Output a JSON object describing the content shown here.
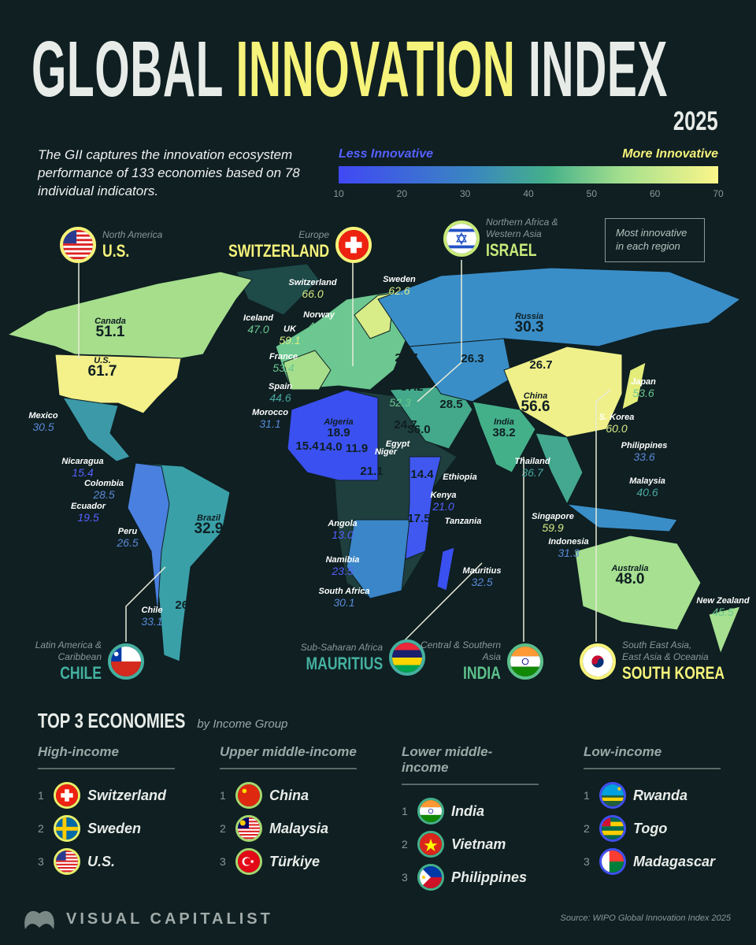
{
  "header": {
    "title_part1": "GLOBAL",
    "title_highlight": "INNOVATION",
    "title_part2": "INDEX",
    "year": "2025",
    "intro": "The GII captures the innovation ecosystem performance of 133 economies based on 78 individual indicators."
  },
  "legend": {
    "less": "Less Innovative",
    "more": "More Innovative",
    "ticks": [
      "10",
      "20",
      "30",
      "40",
      "50",
      "60",
      "70"
    ],
    "colors": [
      "#4048f5",
      "#3a86c0",
      "#44b08a",
      "#a6e08e",
      "#fbf68a"
    ]
  },
  "map": {
    "note": "Most innovative in each region",
    "labels": [
      {
        "name": "Canada",
        "value": "51.1"
      },
      {
        "name": "U.S.",
        "value": "61.7"
      },
      {
        "name": "Mexico",
        "value": "30.5"
      },
      {
        "name": "Nicaragua",
        "value": "15.4"
      },
      {
        "name": "Colombia",
        "value": "28.5"
      },
      {
        "name": "Ecuador",
        "value": "19.5"
      },
      {
        "name": "Peru",
        "value": "26.5"
      },
      {
        "name": "Brazil",
        "value": "32.9"
      },
      {
        "name": "Chile",
        "value": "33.1"
      },
      {
        "name": "",
        "value": "26.8"
      },
      {
        "name": "Switzerland",
        "value": "66.0"
      },
      {
        "name": "Sweden",
        "value": "62.6"
      },
      {
        "name": "Iceland",
        "value": "47.0"
      },
      {
        "name": "Norway",
        "value": "49.1"
      },
      {
        "name": "UK",
        "value": "59.1"
      },
      {
        "name": "France",
        "value": "53.4"
      },
      {
        "name": "Spain",
        "value": "44.6"
      },
      {
        "name": "Morocco",
        "value": "31.1"
      },
      {
        "name": "Algeria",
        "value": "18.9"
      },
      {
        "name": "",
        "value": "15.4"
      },
      {
        "name": "",
        "value": "14.0"
      },
      {
        "name": "",
        "value": "11.9"
      },
      {
        "name": "Niger",
        "value": ""
      },
      {
        "name": "",
        "value": "21.1"
      },
      {
        "name": "",
        "value": "29.7"
      },
      {
        "name": "",
        "value": "37.2"
      },
      {
        "name": "",
        "value": "52.3"
      },
      {
        "name": "",
        "value": "24.7"
      },
      {
        "name": "Egypt",
        "value": ""
      },
      {
        "name": "",
        "value": "36.0"
      },
      {
        "name": "",
        "value": "28.5"
      },
      {
        "name": "",
        "value": "26.3"
      },
      {
        "name": "",
        "value": "26.7"
      },
      {
        "name": "Russia",
        "value": "30.3"
      },
      {
        "name": "China",
        "value": "56.6"
      },
      {
        "name": "Japan",
        "value": "53.6"
      },
      {
        "name": "S. Korea",
        "value": "60.0"
      },
      {
        "name": "India",
        "value": "38.2"
      },
      {
        "name": "Philippines",
        "value": "33.6"
      },
      {
        "name": "Thailand",
        "value": "36.7"
      },
      {
        "name": "Malaysia",
        "value": "40.6"
      },
      {
        "name": "",
        "value": "14.4"
      },
      {
        "name": "Ethiopia",
        "value": ""
      },
      {
        "name": "Kenya",
        "value": "21.0"
      },
      {
        "name": "",
        "value": "17.5"
      },
      {
        "name": "Tanzania",
        "value": ""
      },
      {
        "name": "Singapore",
        "value": "59.9"
      },
      {
        "name": "Indonesia",
        "value": "31.3"
      },
      {
        "name": "Angola",
        "value": "13.0"
      },
      {
        "name": "Namibia",
        "value": "23.5"
      },
      {
        "name": "South Africa",
        "value": "30.1"
      },
      {
        "name": "Mauritius",
        "value": "32.5"
      },
      {
        "name": "Australia",
        "value": "48.0"
      },
      {
        "name": "New Zealand",
        "value": "45.5"
      }
    ],
    "region_leaders": [
      {
        "region": "North America",
        "country": "U.S.",
        "flag": "us",
        "color": "#f6f37a"
      },
      {
        "region": "Europe",
        "country": "SWITZERLAND",
        "flag": "ch",
        "color": "#f6f37a"
      },
      {
        "region": "Northern Africa & Western Asia",
        "country": "ISRAEL",
        "flag": "il",
        "color": "#c8ea7a"
      },
      {
        "region": "Latin America & Caribbean",
        "country": "CHILE",
        "flag": "cl",
        "color": "#44b0a0"
      },
      {
        "region": "Sub-Saharan Africa",
        "country": "MAURITIUS",
        "flag": "mu",
        "color": "#44b0a0"
      },
      {
        "region": "Central & Southern Asia",
        "country": "INDIA",
        "flag": "in",
        "color": "#5cc08a"
      },
      {
        "region": "South East Asia, East Asia & Oceania",
        "country": "SOUTH KOREA",
        "flag": "kr",
        "color": "#f6f37a"
      }
    ]
  },
  "top3": {
    "title": "TOP 3 ECONOMIES",
    "subtitle": "by Income Group",
    "groups": [
      {
        "label": "High-income",
        "ring": "#e8f06a",
        "items": [
          {
            "rank": "1",
            "country": "Switzerland",
            "flag": "ch"
          },
          {
            "rank": "2",
            "country": "Sweden",
            "flag": "se"
          },
          {
            "rank": "3",
            "country": "U.S.",
            "flag": "us"
          }
        ]
      },
      {
        "label": "Upper middle-income",
        "ring": "#a6d870",
        "items": [
          {
            "rank": "1",
            "country": "China",
            "flag": "cn"
          },
          {
            "rank": "2",
            "country": "Malaysia",
            "flag": "my"
          },
          {
            "rank": "3",
            "country": "Türkiye",
            "flag": "tr"
          }
        ]
      },
      {
        "label": "Lower middle-income",
        "ring": "#44b08a",
        "items": [
          {
            "rank": "1",
            "country": "India",
            "flag": "in"
          },
          {
            "rank": "2",
            "country": "Vietnam",
            "flag": "vn"
          },
          {
            "rank": "3",
            "country": "Philippines",
            "flag": "ph"
          }
        ]
      },
      {
        "label": "Low-income",
        "ring": "#4050f0",
        "items": [
          {
            "rank": "1",
            "country": "Rwanda",
            "flag": "rw"
          },
          {
            "rank": "2",
            "country": "Togo",
            "flag": "tg"
          },
          {
            "rank": "3",
            "country": "Madagascar",
            "flag": "mg"
          }
        ]
      }
    ]
  },
  "footer": {
    "brand": "VISUAL CAPITALIST",
    "source": "Source: WIPO Global Innovation Index 2025"
  }
}
